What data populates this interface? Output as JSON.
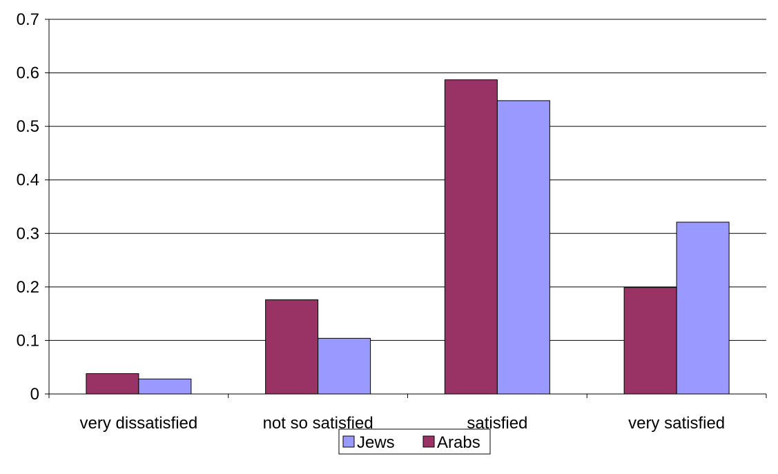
{
  "chart_data": {
    "type": "bar",
    "categories": [
      "very dissatisfied",
      "not so satisfied",
      "satisfied",
      "very satisfied"
    ],
    "series": [
      {
        "name": "Arabs",
        "color": "#993366",
        "values": [
          0.038,
          0.176,
          0.587,
          0.199
        ]
      },
      {
        "name": "Jews",
        "color": "#9999FF",
        "values": [
          0.028,
          0.104,
          0.548,
          0.321
        ]
      }
    ],
    "ylim": [
      0,
      0.7
    ],
    "y_ticks": [
      0,
      0.1,
      0.2,
      0.3,
      0.4,
      0.5,
      0.6,
      0.7
    ],
    "y_tick_labels": [
      "0",
      "0.1",
      "0.2",
      "0.3",
      "0.4",
      "0.5",
      "0.6",
      "0.7"
    ],
    "legend": [
      "Jews",
      "Arabs"
    ],
    "legend_position": "bottom",
    "grid": true,
    "title": "",
    "xlabel": "",
    "ylabel": ""
  }
}
